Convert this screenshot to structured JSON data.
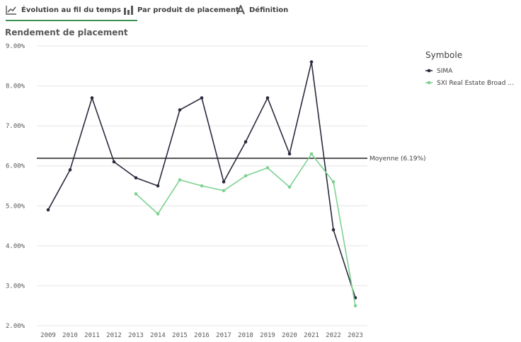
{
  "tabs": [
    {
      "label": "Évolution au fil du temps",
      "icon": "line-chart-icon",
      "active": true
    },
    {
      "label": "Par produit de placement",
      "icon": "bar-chart-icon",
      "active": false
    },
    {
      "label": "Définition",
      "icon": "text-a-icon",
      "active": false
    }
  ],
  "page_title": "Rendement de placement",
  "legend_title": "Symbole",
  "reference_line_label": "Moyenne (6.19%)",
  "colors": {
    "sima": "#2a2a3c",
    "sxi": "#7dd191",
    "reference": "#595959",
    "grid": "#e4e4e4",
    "accent": "#3f8f4f"
  },
  "chart_data": {
    "type": "line",
    "title": "Rendement de placement",
    "x": [
      "2009",
      "2010",
      "2011",
      "2012",
      "2013",
      "2014",
      "2015",
      "2016",
      "2017",
      "2018",
      "2019",
      "2020",
      "2021",
      "2022",
      "2023"
    ],
    "ylim": [
      2.0,
      9.0
    ],
    "yticks": [
      2,
      3,
      4,
      5,
      6,
      7,
      8,
      9
    ],
    "ytick_labels": [
      "2.00%",
      "3.00%",
      "4.00%",
      "5.00%",
      "6.00%",
      "7.00%",
      "8.00%",
      "9.00%"
    ],
    "grid": true,
    "legend": "right",
    "reference_line": {
      "label": "Moyenne (6.19%)",
      "value": 6.19
    },
    "series": [
      {
        "name": "SIMA",
        "color": "#2a2a3c",
        "values": [
          4.9,
          5.9,
          7.7,
          6.1,
          5.7,
          5.5,
          7.4,
          7.7,
          5.6,
          6.6,
          7.7,
          6.3,
          8.6,
          4.4,
          2.7
        ]
      },
      {
        "name": "SXI Real Estate Broad ...",
        "color": "#7dd191",
        "values": [
          null,
          null,
          null,
          null,
          5.3,
          4.8,
          5.65,
          5.5,
          5.38,
          5.75,
          5.95,
          5.47,
          6.3,
          5.6,
          2.5
        ]
      }
    ]
  }
}
